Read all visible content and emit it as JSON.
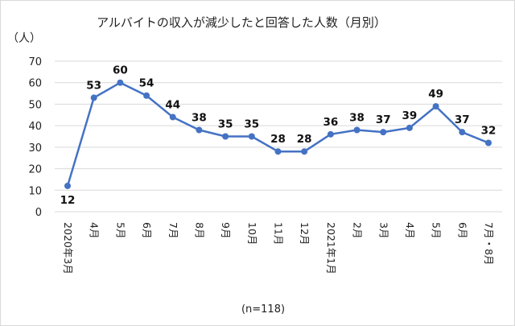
{
  "chart_data": {
    "type": "line",
    "title": "アルバイトの収入が減少したと回答した人数（月別）",
    "ylabel": "（人）",
    "note": "(n=118)",
    "ylim": [
      0,
      70
    ],
    "yticks": [
      0,
      10,
      20,
      30,
      40,
      50,
      60,
      70
    ],
    "grid": true,
    "categories": [
      "2020年3月",
      "4月",
      "5月",
      "6月",
      "7月",
      "8月",
      "9月",
      "10月",
      "11月",
      "12月",
      "2021年1月",
      "2月",
      "3月",
      "4月",
      "5月",
      "6月",
      "7月・8月"
    ],
    "series": [
      {
        "name": "人数",
        "color": "#4472c4",
        "values": [
          12,
          53,
          60,
          54,
          44,
          38,
          35,
          35,
          28,
          28,
          36,
          38,
          37,
          39,
          49,
          37,
          32
        ]
      }
    ]
  }
}
